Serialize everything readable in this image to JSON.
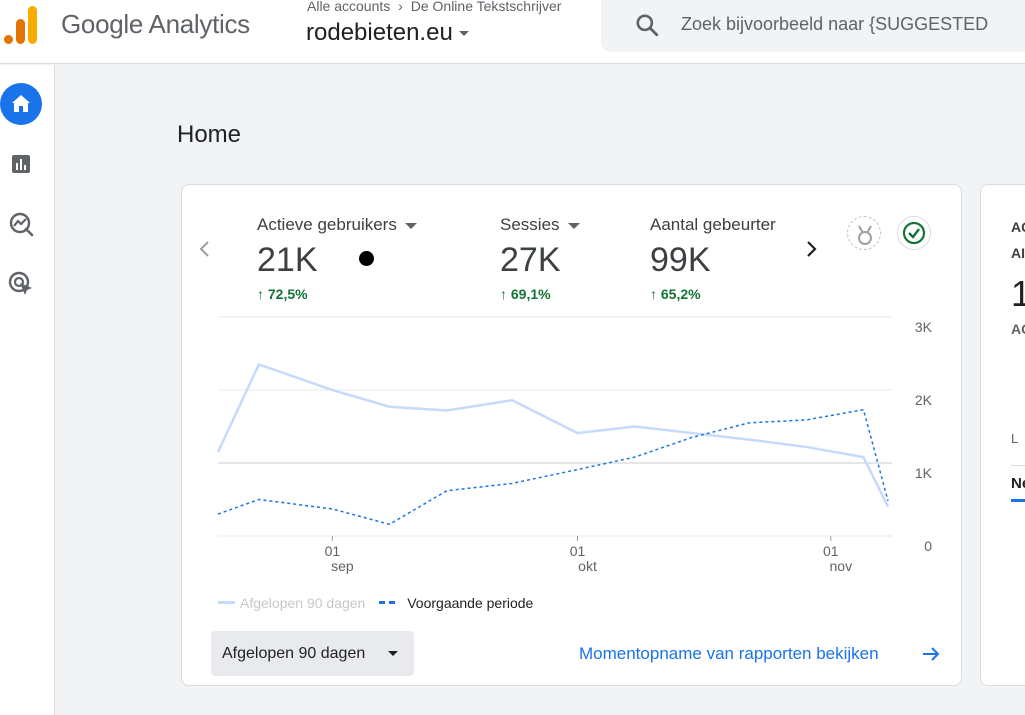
{
  "app": {
    "title": "Google Analytics",
    "breadcrumb": [
      "Alle accounts",
      "De Online Tekstschrijver"
    ],
    "property": "rodebieten.eu"
  },
  "search": {
    "placeholder": "Zoek bijvoorbeeld naar {SUGGESTED"
  },
  "sidebar": {
    "items": [
      {
        "name": "home",
        "icon": "home-icon",
        "active": true
      },
      {
        "name": "reports",
        "icon": "bar-chart-icon"
      },
      {
        "name": "explore",
        "icon": "explore-icon"
      },
      {
        "name": "advertising",
        "icon": "advertising-icon"
      }
    ]
  },
  "page": {
    "title": "Home"
  },
  "metrics": [
    {
      "label": "Actieve gebruikers",
      "value": "21K",
      "change": "72,5%",
      "has_dropdown": true
    },
    {
      "label": "Sessies",
      "value": "27K",
      "change": "69,1%",
      "has_dropdown": true
    },
    {
      "label": "Aantal gebeurter",
      "value": "99K",
      "change": "65,2%",
      "has_dropdown": false
    }
  ],
  "chart_data": {
    "type": "line",
    "x": [
      "2024-08-18",
      "2024-08-23",
      "2024-09-01",
      "2024-09-08",
      "2024-09-15",
      "2024-09-23",
      "2024-10-01",
      "2024-10-08",
      "2024-10-15",
      "2024-10-22",
      "2024-10-29",
      "2024-11-05",
      "2024-11-08"
    ],
    "xticks": [
      {
        "date": "2024-09-01",
        "day": "01",
        "month": "sep"
      },
      {
        "date": "2024-10-01",
        "day": "01",
        "month": "okt"
      },
      {
        "date": "2024-11-01",
        "day": "01",
        "month": "nov"
      }
    ],
    "yticks": [
      "3K",
      "2K",
      "1K",
      "0"
    ],
    "ylim": [
      0,
      3000
    ],
    "series": [
      {
        "name": "Afgelopen 90 dagen",
        "color": "#c6dafc",
        "style": "solid",
        "values": [
          1150,
          2350,
          2000,
          1770,
          1720,
          1860,
          1410,
          1500,
          1410,
          1320,
          1220,
          1080,
          400
        ]
      },
      {
        "name": "Voorgaande periode",
        "color": "#1a73e8",
        "style": "dashed",
        "values": [
          300,
          500,
          370,
          160,
          620,
          720,
          910,
          1080,
          1350,
          1550,
          1590,
          1730,
          480
        ]
      }
    ]
  },
  "legend": {
    "current": "Afgelopen 90 dagen",
    "previous": "Voorgaande periode"
  },
  "date_range": {
    "label": "Afgelopen 90 dagen"
  },
  "snapshot_link": "Momentopname van rapporten bekijken",
  "side_card": {
    "line1": "AC",
    "line2": "AI",
    "big": "1",
    "line3": "AC",
    "line4": "L",
    "tab": "Ne"
  },
  "colors": {
    "accent": "#1a73e8",
    "positive": "#137333",
    "logo_orange": "#f9ab00",
    "logo_dark": "#e37400"
  }
}
